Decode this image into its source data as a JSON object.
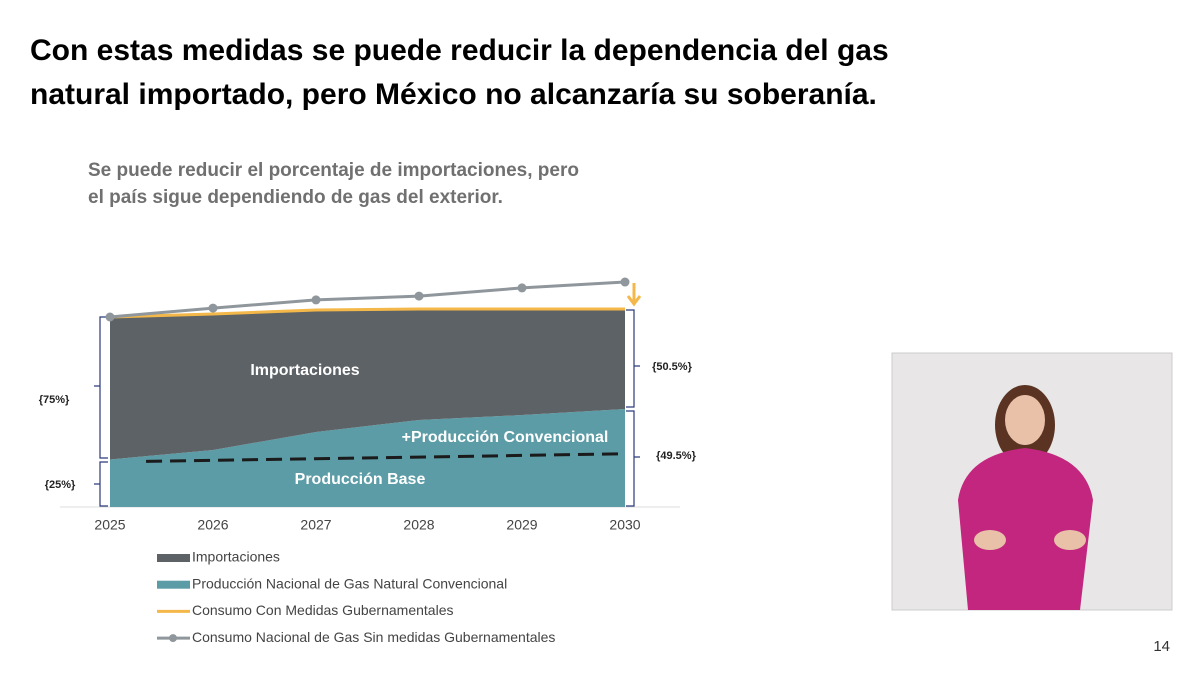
{
  "slide": {
    "title_lines": [
      "Con estas medidas se puede reducir la dependencia del gas",
      "natural importado, pero México no alcanzaría su soberanía."
    ],
    "page_number": "14"
  },
  "chart_data": {
    "type": "area",
    "subtitle_lines": [
      "Se puede reducir el porcentaje de importaciones, pero",
      "el país sigue dependiendo de gas del exterior."
    ],
    "x": [
      2025,
      2026,
      2027,
      2028,
      2029,
      2030
    ],
    "xlim": [
      2025,
      2030
    ],
    "ylim": [
      0,
      120
    ],
    "series": [
      {
        "name": "Producción Nacional de Gas Natural Convencional",
        "kind": "area",
        "color": "#5b9ca6",
        "values": [
          25,
          30,
          39.5,
          45.8,
          48.4,
          51.6
        ]
      },
      {
        "name": "Importaciones",
        "kind": "area",
        "color": "#5d6266",
        "values": [
          75,
          71.6,
          64.2,
          58.4,
          55.8,
          52.6
        ]
      },
      {
        "name": "Consumo Con Medidas Gubernamentales",
        "kind": "line",
        "color": "#f4b84a",
        "values": [
          100,
          101.6,
          103.7,
          104.2,
          104.2,
          104.2
        ]
      },
      {
        "name": "Consumo Nacional de Gas Sin medidas Gubernamentales",
        "kind": "line-marker",
        "color": "#8f979c",
        "values": [
          100,
          104.7,
          109,
          111,
          115.3,
          118.4
        ]
      }
    ],
    "legend_order": [
      1,
      0,
      2,
      3
    ],
    "reference_line": {
      "x": [
        2025.35,
        2030
      ],
      "values": [
        24,
        28
      ]
    },
    "annotations": [
      "Importaciones",
      "+Producción Convencional",
      "Producción Base",
      "{75%}",
      "{25%}",
      "{50.5%}",
      "{49.5%}"
    ]
  }
}
